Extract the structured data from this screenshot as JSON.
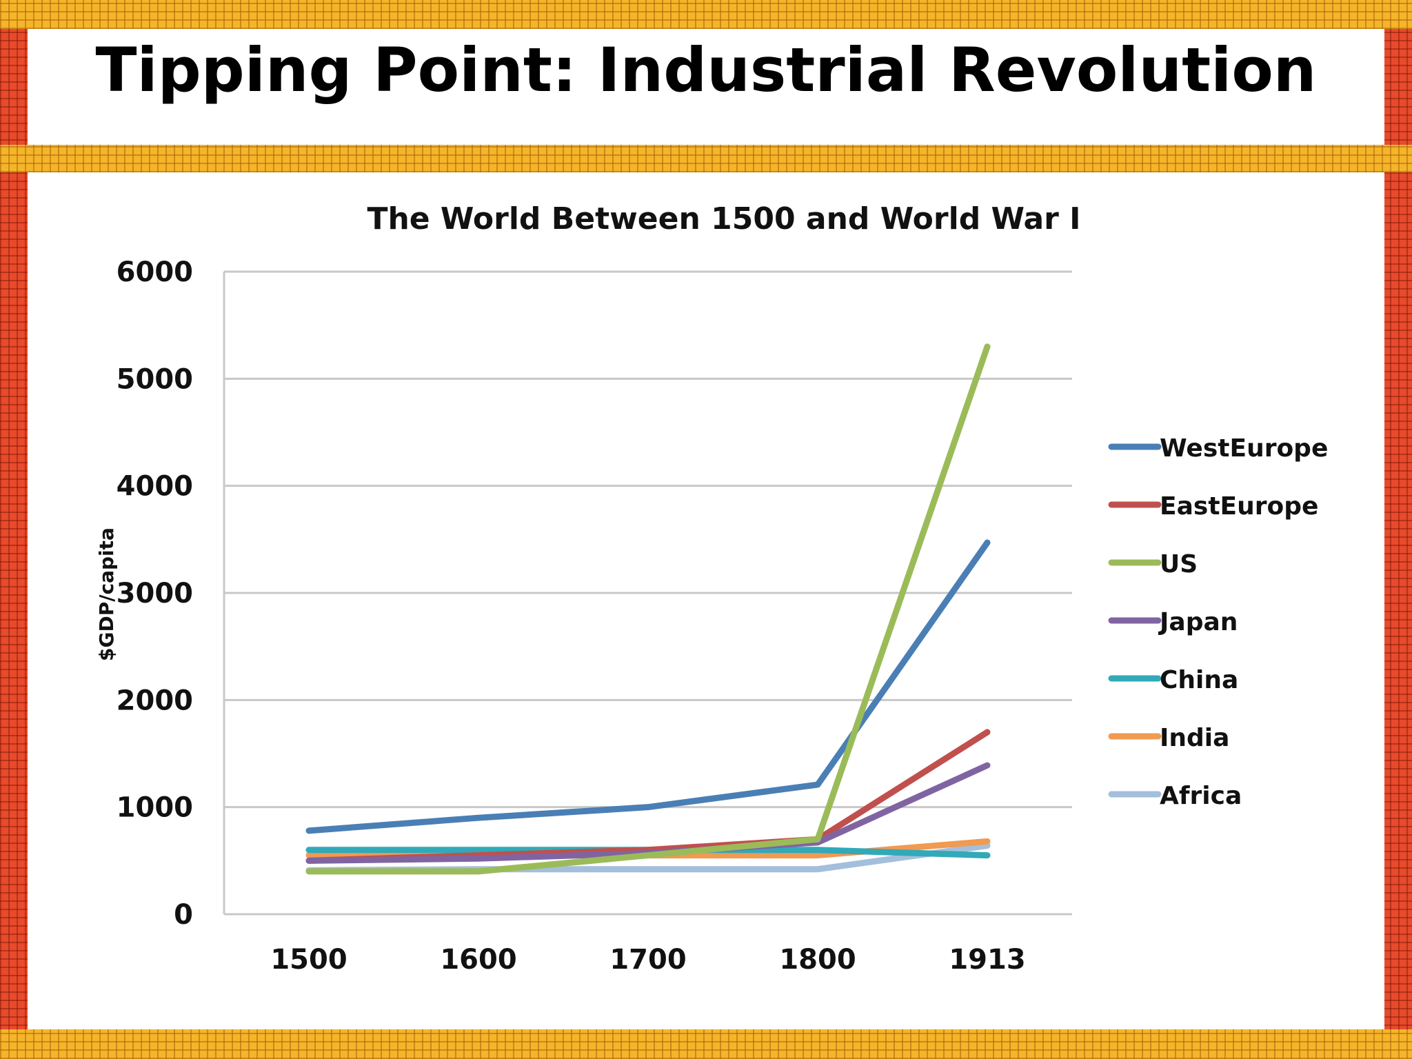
{
  "slide": {
    "title": "Tipping Point: Industrial Revolution"
  },
  "theme": {
    "border_red": "#e84a2c",
    "border_gold": "#f5b52a",
    "gridline": "#c8c8c8"
  },
  "chart_data": {
    "type": "line",
    "title": "The World Between 1500 and World War I",
    "xlabel": "",
    "ylabel": "$GDP/capita",
    "categories": [
      "1500",
      "1600",
      "1700",
      "1800",
      "1913"
    ],
    "ylim": [
      0,
      6000
    ],
    "yticks": [
      0,
      1000,
      2000,
      3000,
      4000,
      5000,
      6000
    ],
    "grid": true,
    "legend_position": "right",
    "series": [
      {
        "name": "WestEurope",
        "color": "#4a7fb5",
        "values": [
          780,
          900,
          1000,
          1210,
          3470
        ]
      },
      {
        "name": "EastEurope",
        "color": "#c0504d",
        "values": [
          500,
          550,
          600,
          700,
          1700
        ]
      },
      {
        "name": "US",
        "color": "#9bbb59",
        "values": [
          400,
          400,
          550,
          700,
          5300
        ]
      },
      {
        "name": "Japan",
        "color": "#8064a2",
        "values": [
          500,
          520,
          570,
          670,
          1390
        ]
      },
      {
        "name": "China",
        "color": "#31a9b8",
        "values": [
          600,
          600,
          600,
          600,
          550
        ]
      },
      {
        "name": "India",
        "color": "#f09a52",
        "values": [
          550,
          550,
          550,
          550,
          680
        ]
      },
      {
        "name": "Africa",
        "color": "#a4bfdc",
        "values": [
          410,
          420,
          420,
          420,
          640
        ]
      }
    ]
  }
}
